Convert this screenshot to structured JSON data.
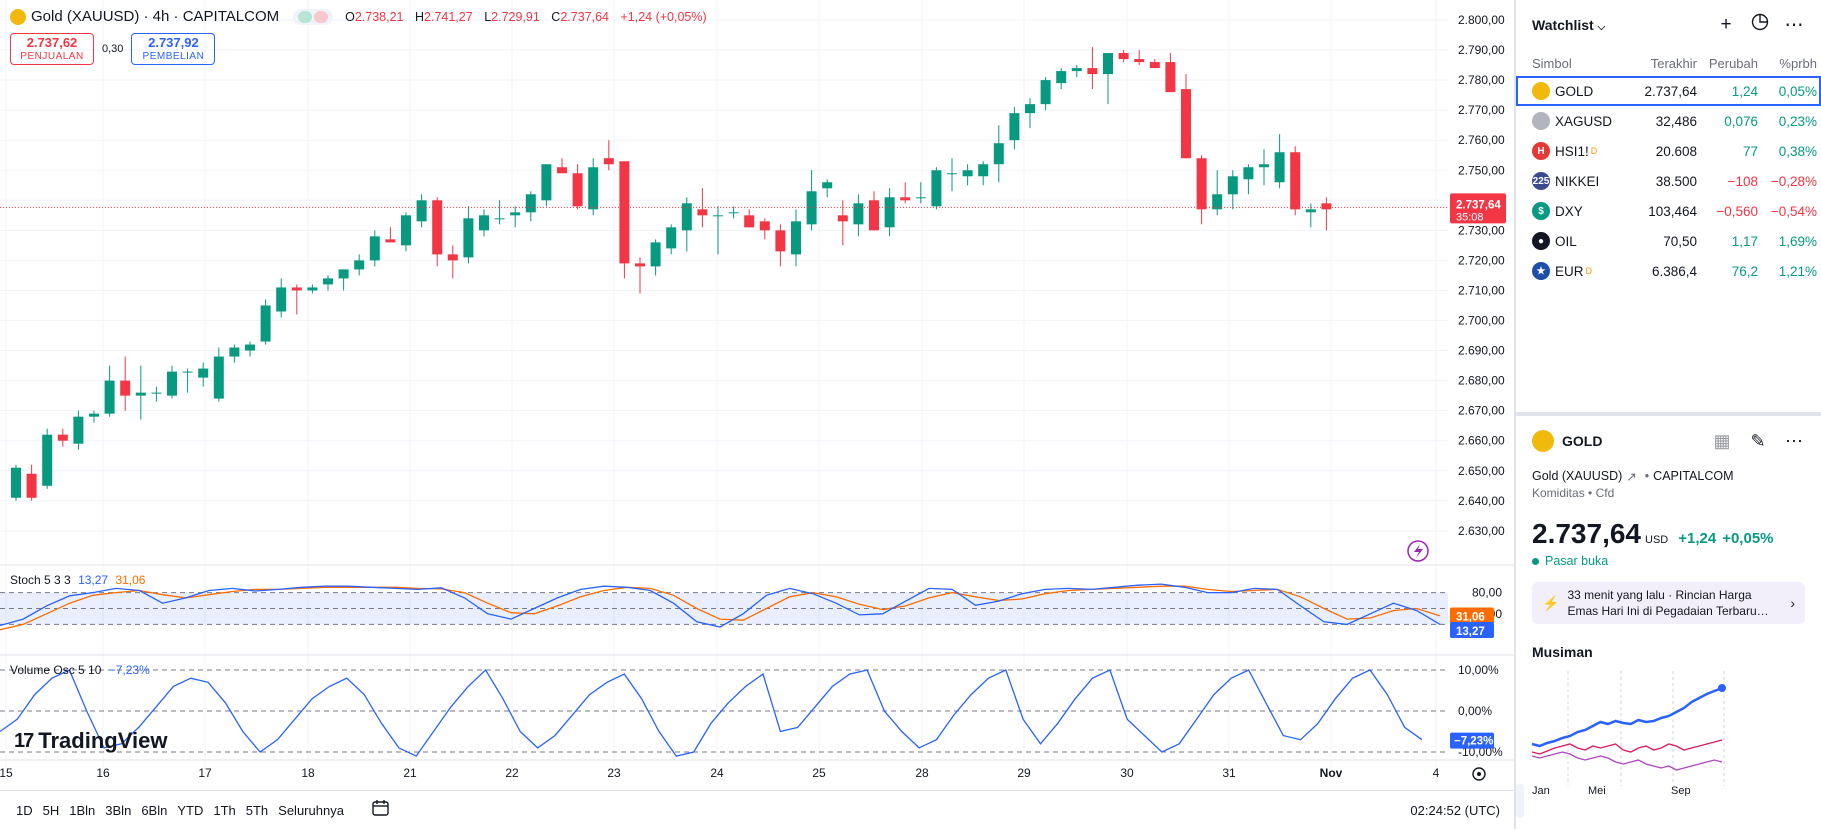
{
  "chart": {
    "symbol_title": "Gold (XAUUSD) · 4h · CAPITALCOM",
    "ohlc": {
      "o_label": "O",
      "o": "2.738,21",
      "h_label": "H",
      "h": "2.741,27",
      "l_label": "L",
      "l": "2.729,91",
      "c_label": "C",
      "c": "2.737,64",
      "change": "+1,24 (+0,05%)"
    },
    "sell_price": "2.737,62",
    "sell_label": "PENJUALAN",
    "spread": "0,30",
    "buy_price": "2.737,92",
    "buy_label": "PEMBELIAN",
    "last_price_label": "2.737,64",
    "countdown": "35:08",
    "price_axis": [
      "2.800,00",
      "2.790,00",
      "2.780,00",
      "2.770,00",
      "2.760,00",
      "2.750,00",
      "2.740,00",
      "2.730,00",
      "2.720,00",
      "2.710,00",
      "2.700,00",
      "2.690,00",
      "2.680,00",
      "2.670,00",
      "2.660,00",
      "2.650,00",
      "2.640,00",
      "2.630,00"
    ],
    "time_axis": [
      "15",
      "16",
      "17",
      "18",
      "21",
      "22",
      "23",
      "24",
      "25",
      "28",
      "29",
      "30",
      "31",
      "Nov",
      "4"
    ],
    "colors": {
      "up": "#089981",
      "down": "#f23645",
      "blue": "#2962ff",
      "orange": "#ff6d00"
    }
  },
  "stoch": {
    "name": "Stoch 5 3 3",
    "k": "13,27",
    "d": "31,06",
    "axis": [
      "80,00",
      "40,00"
    ],
    "k_label": "13,27",
    "d_label": "31,06"
  },
  "volosc": {
    "name": "Volume Osc 5 10",
    "value": "−7,23%",
    "axis": [
      "10,00%",
      "0,00%",
      "-10,00%"
    ],
    "value_label": "−7,23%"
  },
  "branding": {
    "logo_text": "TradingView"
  },
  "bottom_bar": {
    "timeframes": [
      "1D",
      "5H",
      "1Bln",
      "3Bln",
      "6Bln",
      "YTD",
      "1Th",
      "5Th",
      "Seluruhnya"
    ],
    "clock": "02:24:52 (UTC)"
  },
  "watchlist": {
    "title": "Watchlist",
    "columns": {
      "symbol": "Simbol",
      "last": "Terakhir",
      "change": "Perubah",
      "pct": "%prbh"
    },
    "rows": [
      {
        "symbol": "GOLD",
        "last": "2.737,64",
        "change": "1,24",
        "pct": "0,05%",
        "dir": "up",
        "icon_color": "#f0b90b",
        "icon_text": "",
        "dmark": ""
      },
      {
        "symbol": "XAGUSD",
        "last": "32,486",
        "change": "0,076",
        "pct": "0,23%",
        "dir": "up",
        "icon_color": "#b2b5be",
        "icon_text": "",
        "dmark": ""
      },
      {
        "symbol": "HSI1!",
        "last": "20.608",
        "change": "77",
        "pct": "0,38%",
        "dir": "up",
        "icon_color": "#e53935",
        "icon_text": "H",
        "dmark": "D"
      },
      {
        "symbol": "NIKKEI",
        "last": "38.500",
        "change": "−108",
        "pct": "−0,28%",
        "dir": "dn",
        "icon_color": "#3a4a8c",
        "icon_text": "225",
        "dmark": ""
      },
      {
        "symbol": "DXY",
        "last": "103,464",
        "change": "−0,560",
        "pct": "−0,54%",
        "dir": "dn",
        "icon_color": "#089981",
        "icon_text": "$",
        "dmark": ""
      },
      {
        "symbol": "OIL",
        "last": "70,50",
        "change": "1,17",
        "pct": "1,69%",
        "dir": "up",
        "icon_color": "#131722",
        "icon_text": "●",
        "dmark": ""
      },
      {
        "symbol": "EUR",
        "last": "6.386,4",
        "change": "76,2",
        "pct": "1,21%",
        "dir": "up",
        "icon_color": "#1e4fa8",
        "icon_text": "★",
        "dmark": "D"
      }
    ]
  },
  "details": {
    "symbol": "GOLD",
    "name": "Gold (XAUUSD)",
    "exchange": "CAPITALCOM",
    "category": "Komiditas",
    "subcategory": "Cfd",
    "price": "2.737,64",
    "currency": "USD",
    "change": "+1,24",
    "change_pct": "+0,05%",
    "market_status": "Pasar buka",
    "news_time": "33 menit yang lalu",
    "news_title": "Rincian Harga Emas Hari Ini di Pegadaian Terbaru…",
    "seasonal_title": "Musiman",
    "seasonal_months": [
      "Jan",
      "Mei",
      "Sep"
    ]
  }
}
